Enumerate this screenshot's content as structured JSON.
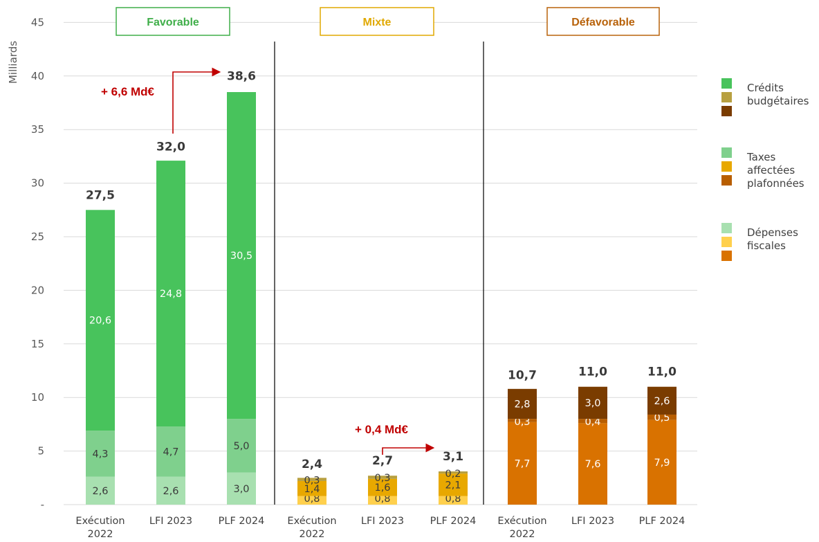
{
  "chart_data": {
    "type": "bar",
    "stacked": true,
    "ylabel": "Milliards",
    "ylim": [
      0,
      45
    ],
    "yticks": [
      "-",
      "5",
      "10",
      "15",
      "20",
      "25",
      "30",
      "35",
      "40",
      "45"
    ],
    "grid": true,
    "groups": [
      {
        "name": "Favorable",
        "color": "#3fae49",
        "bars": [
          {
            "label": [
              "Exécution",
              "2022"
            ],
            "total": 27.5,
            "total_label": "27,5",
            "segments": [
              {
                "kind": "depenses_fiscales",
                "value": 2.6,
                "label": "2,6",
                "color": "#a8e0b0"
              },
              {
                "kind": "taxes_affectees",
                "value": 4.3,
                "label": "4,3",
                "color": "#7fd08d"
              },
              {
                "kind": "credits_budgetaires",
                "value": 20.6,
                "label": "20,6",
                "color": "#48c35c"
              }
            ]
          },
          {
            "label": [
              "LFI 2023"
            ],
            "total": 32.0,
            "total_label": "32,0",
            "segments": [
              {
                "kind": "depenses_fiscales",
                "value": 2.6,
                "label": "2,6",
                "color": "#a8e0b0"
              },
              {
                "kind": "taxes_affectees",
                "value": 4.7,
                "label": "4,7",
                "color": "#7fd08d"
              },
              {
                "kind": "credits_budgetaires",
                "value": 24.8,
                "label": "24,8",
                "color": "#48c35c"
              }
            ]
          },
          {
            "label": [
              "PLF 2024"
            ],
            "total": 38.6,
            "total_label": "38,6",
            "segments": [
              {
                "kind": "depenses_fiscales",
                "value": 3.0,
                "label": "3,0",
                "color": "#a8e0b0"
              },
              {
                "kind": "taxes_affectees",
                "value": 5.0,
                "label": "5,0",
                "color": "#7fd08d"
              },
              {
                "kind": "credits_budgetaires",
                "value": 30.5,
                "label": "30,5",
                "color": "#48c35c"
              }
            ]
          }
        ],
        "annotation": {
          "text": "+ 6,6 Md€",
          "from_bar": 1,
          "to_bar": 2
        }
      },
      {
        "name": "Mixte",
        "color": "#e0a800",
        "bars": [
          {
            "label": [
              "Exécution",
              "2022"
            ],
            "total": 2.4,
            "total_label": "2,4",
            "segments": [
              {
                "kind": "depenses_fiscales",
                "value": 0.8,
                "label": "0,8",
                "color": "#ffd04d"
              },
              {
                "kind": "taxes_affectees",
                "value": 1.4,
                "label": "1,4",
                "color": "#e8a800"
              },
              {
                "kind": "credits_budgetaires",
                "value": 0.3,
                "label": "0,3",
                "color": "#b8a040"
              }
            ]
          },
          {
            "label": [
              "LFI 2023"
            ],
            "total": 2.7,
            "total_label": "2,7",
            "segments": [
              {
                "kind": "depenses_fiscales",
                "value": 0.8,
                "label": "0,8",
                "color": "#ffd04d"
              },
              {
                "kind": "taxes_affectees",
                "value": 1.6,
                "label": "1,6",
                "color": "#e8a800"
              },
              {
                "kind": "credits_budgetaires",
                "value": 0.3,
                "label": "0,3",
                "color": "#b8a040"
              }
            ]
          },
          {
            "label": [
              "PLF 2024"
            ],
            "total": 3.1,
            "total_label": "3,1",
            "segments": [
              {
                "kind": "depenses_fiscales",
                "value": 0.8,
                "label": "0,8",
                "color": "#ffd04d"
              },
              {
                "kind": "taxes_affectees",
                "value": 2.1,
                "label": "2,1",
                "color": "#e8a800"
              },
              {
                "kind": "credits_budgetaires",
                "value": 0.2,
                "label": "0,2",
                "color": "#b8a040"
              }
            ]
          }
        ],
        "annotation": {
          "text": "+ 0,4 Md€",
          "from_bar": 1,
          "to_bar": 2
        }
      },
      {
        "name": "Défavorable",
        "color": "#b8620a",
        "bars": [
          {
            "label": [
              "Exécution",
              "2022"
            ],
            "total": 10.7,
            "total_label": "10,7",
            "segments": [
              {
                "kind": "depenses_fiscales",
                "value": 7.7,
                "label": "7,7",
                "color": "#d97200"
              },
              {
                "kind": "taxes_affectees",
                "value": 0.3,
                "label": "0,3",
                "color": "#b85e00"
              },
              {
                "kind": "credits_budgetaires",
                "value": 2.8,
                "label": "2,8",
                "color": "#7a3c00"
              }
            ]
          },
          {
            "label": [
              "LFI 2023"
            ],
            "total": 11.0,
            "total_label": "11,0",
            "segments": [
              {
                "kind": "depenses_fiscales",
                "value": 7.6,
                "label": "7,6",
                "color": "#d97200"
              },
              {
                "kind": "taxes_affectees",
                "value": 0.4,
                "label": "0,4",
                "color": "#b85e00"
              },
              {
                "kind": "credits_budgetaires",
                "value": 3.0,
                "label": "3,0",
                "color": "#7a3c00"
              }
            ]
          },
          {
            "label": [
              "PLF 2024"
            ],
            "total": 11.0,
            "total_label": "11,0",
            "segments": [
              {
                "kind": "depenses_fiscales",
                "value": 7.9,
                "label": "7,9",
                "color": "#d97200"
              },
              {
                "kind": "taxes_affectees",
                "value": 0.5,
                "label": "0,5",
                "color": "#b85e00"
              },
              {
                "kind": "credits_budgetaires",
                "value": 2.6,
                "label": "2,6",
                "color": "#7a3c00"
              }
            ]
          }
        ]
      }
    ],
    "legend": [
      {
        "text": [
          "Crédits",
          "budgétaires"
        ],
        "colors": [
          "#48c35c",
          "#b8a040",
          "#7a3c00"
        ]
      },
      {
        "text": [
          "Taxes",
          "affectées",
          "plafonnées"
        ],
        "colors": [
          "#7fd08d",
          "#e8a800",
          "#b85e00"
        ]
      },
      {
        "text": [
          "Dépenses",
          "fiscales"
        ],
        "colors": [
          "#a8e0b0",
          "#ffd04d",
          "#d97200"
        ]
      }
    ],
    "annotation_color": "#c00000"
  }
}
